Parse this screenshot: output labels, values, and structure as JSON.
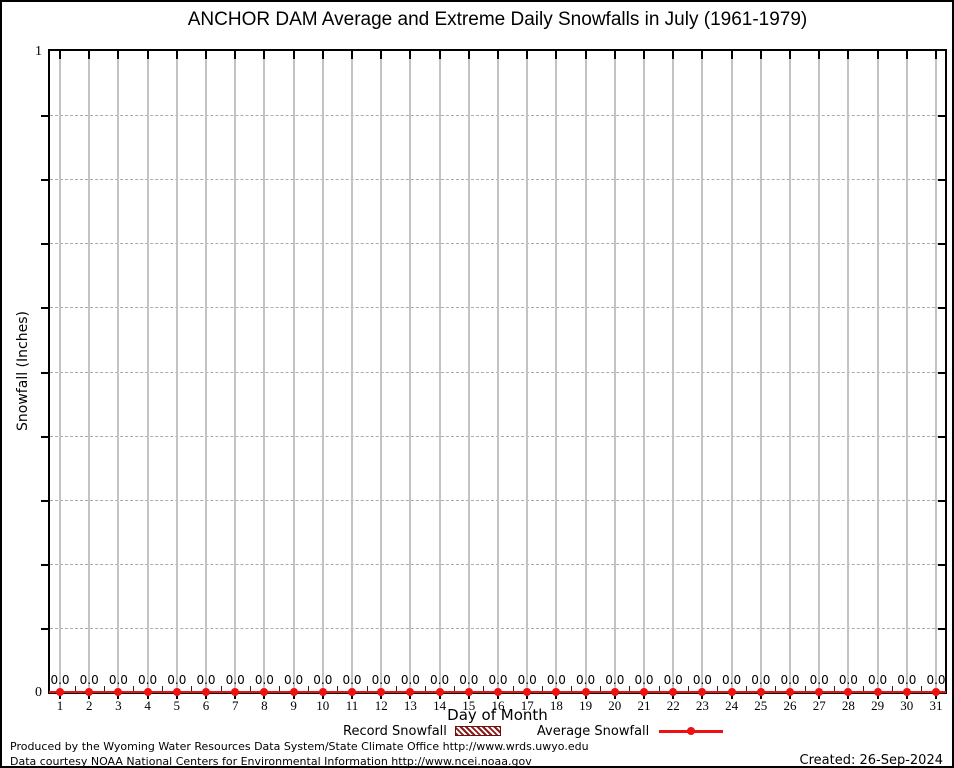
{
  "title": "ANCHOR DAM Average and Extreme Daily Snowfalls in July (1961-1979)",
  "axes": {
    "y_label": "Snowfall (Inches)",
    "x_label": "Day of Month",
    "y_top_tick": "1",
    "y_bottom_tick": "0"
  },
  "legend": {
    "record_label": "Record Snowfall",
    "average_label": "Average Snowfall"
  },
  "footer": {
    "line1": "Produced by the Wyoming Water Resources Data System/State Climate Office http://www.wrds.uwyo.edu",
    "line2": "Data courtesy NOAA National Centers for Environmental Information http://www.ncei.noaa.gov",
    "created": "Created: 26-Sep-2024"
  },
  "colors": {
    "average_line": "#ee1111",
    "record_fill": "#8b1a1a",
    "grid_vertical": "#c3c3c3",
    "grid_dashed": "#ababab"
  },
  "chart_data": {
    "type": "line",
    "title": "ANCHOR DAM Average and Extreme Daily Snowfalls in July (1961-1979)",
    "xlabel": "Day of Month",
    "ylabel": "Snowfall (Inches)",
    "x": [
      1,
      2,
      3,
      4,
      5,
      6,
      7,
      8,
      9,
      10,
      11,
      12,
      13,
      14,
      15,
      16,
      17,
      18,
      19,
      20,
      21,
      22,
      23,
      24,
      25,
      26,
      27,
      28,
      29,
      30,
      31
    ],
    "series": [
      {
        "name": "Record Snowfall",
        "type": "bar",
        "values": [
          0.0,
          0.0,
          0.0,
          0.0,
          0.0,
          0.0,
          0.0,
          0.0,
          0.0,
          0.0,
          0.0,
          0.0,
          0.0,
          0.0,
          0.0,
          0.0,
          0.0,
          0.0,
          0.0,
          0.0,
          0.0,
          0.0,
          0.0,
          0.0,
          0.0,
          0.0,
          0.0,
          0.0,
          0.0,
          0.0,
          0.0
        ]
      },
      {
        "name": "Average Snowfall",
        "type": "line",
        "values": [
          0.0,
          0.0,
          0.0,
          0.0,
          0.0,
          0.0,
          0.0,
          0.0,
          0.0,
          0.0,
          0.0,
          0.0,
          0.0,
          0.0,
          0.0,
          0.0,
          0.0,
          0.0,
          0.0,
          0.0,
          0.0,
          0.0,
          0.0,
          0.0,
          0.0,
          0.0,
          0.0,
          0.0,
          0.0,
          0.0,
          0.0
        ]
      }
    ],
    "point_labels": [
      "0.0",
      "0.0",
      "0.0",
      "0.0",
      "0.0",
      "0.0",
      "0.0",
      "0.0",
      "0.0",
      "0.0",
      "0.0",
      "0.0",
      "0.0",
      "0.0",
      "0.0",
      "0.0",
      "0.0",
      "0.0",
      "0.0",
      "0.0",
      "0.0",
      "0.0",
      "0.0",
      "0.0",
      "0.0",
      "0.0",
      "0.0",
      "0.0",
      "0.0",
      "0.0",
      "0.0"
    ],
    "ylim": [
      0,
      1
    ],
    "y_gridlines": [
      0.1,
      0.2,
      0.3,
      0.4,
      0.5,
      0.6,
      0.7,
      0.8,
      0.9
    ],
    "grid": true,
    "legend_position": "bottom-center"
  }
}
